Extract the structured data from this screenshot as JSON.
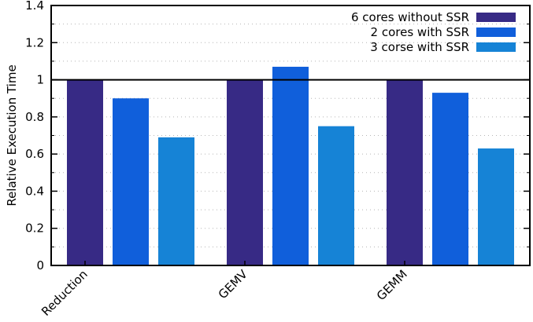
{
  "chart_data": {
    "type": "bar",
    "ylabel": "Relative Execution Time",
    "xlabel": "",
    "ylim": [
      0,
      1.4
    ],
    "yticks": [
      "0",
      "0.2",
      "0.4",
      "0.6",
      "0.8",
      "1",
      "1.2",
      "1.4"
    ],
    "categories": [
      "Reduction",
      "GEMV",
      "GEMM"
    ],
    "series": [
      {
        "name": "6 cores without SSR",
        "color": "#372a85",
        "values": [
          1.0,
          1.0,
          1.0
        ]
      },
      {
        "name": "2 cores with SSR",
        "color": "#105fdb",
        "values": [
          0.9,
          1.07,
          0.93
        ]
      },
      {
        "name": "3 corse with SSR",
        "color": "#1683d6",
        "values": [
          0.69,
          0.75,
          0.63
        ]
      }
    ],
    "reference_line": 1.0,
    "grid": "horizontal dotted",
    "legend_position": "top-right"
  }
}
